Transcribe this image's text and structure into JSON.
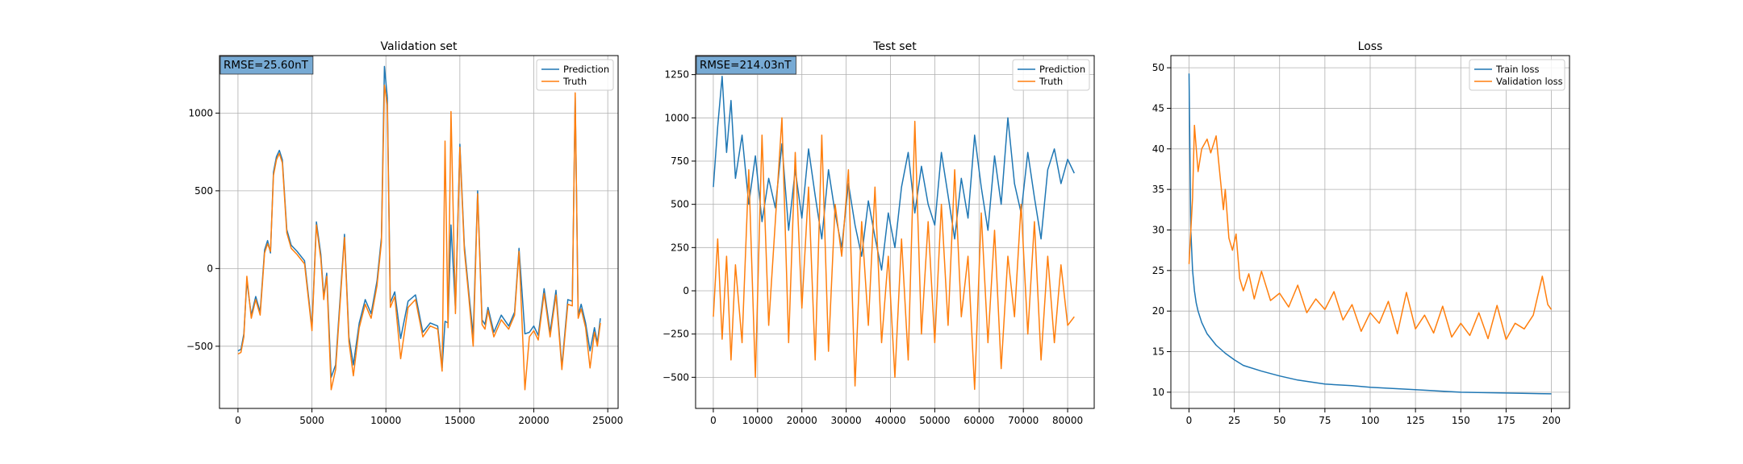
{
  "figure": {
    "colors": {
      "series1": "#1f77b4",
      "series2": "#ff7f0e",
      "grid": "#b0b0b0",
      "rmse_box": "#77aad4"
    }
  },
  "chart_data": [
    {
      "type": "line",
      "title": "Validation set",
      "annotation": "RMSE=25.60nT",
      "xlim": [
        -1250,
        25700
      ],
      "ylim": [
        -900,
        1370
      ],
      "xticks": [
        0,
        5000,
        10000,
        15000,
        20000,
        25000
      ],
      "yticks": [
        -500,
        0,
        500,
        1000
      ],
      "grid": true,
      "legend_position": "upper right",
      "series": [
        {
          "name": "Prediction",
          "x": [
            0,
            200,
            400,
            600,
            900,
            1200,
            1500,
            1800,
            2000,
            2200,
            2400,
            2600,
            2800,
            3000,
            3300,
            3600,
            4000,
            4500,
            5000,
            5300,
            5600,
            5800,
            6000,
            6300,
            6600,
            6900,
            7200,
            7500,
            7800,
            8200,
            8600,
            9000,
            9400,
            9700,
            9900,
            10100,
            10300,
            10600,
            11000,
            11500,
            12000,
            12500,
            13000,
            13500,
            13800,
            14000,
            14200,
            14400,
            14700,
            15000,
            15300,
            15600,
            15900,
            16200,
            16500,
            16700,
            16900,
            17300,
            17800,
            18300,
            18700,
            19000,
            19400,
            19700,
            20000,
            20300,
            20700,
            21100,
            21500,
            21900,
            22300,
            22600,
            22800,
            23000,
            23200,
            23500,
            23800,
            24100,
            24300,
            24500
          ],
          "values": [
            -530,
            -520,
            -420,
            -80,
            -300,
            -180,
            -280,
            120,
            180,
            100,
            620,
            720,
            760,
            700,
            250,
            150,
            110,
            50,
            -380,
            300,
            90,
            -180,
            -30,
            -700,
            -620,
            -200,
            220,
            -440,
            -620,
            -350,
            -200,
            -290,
            -80,
            200,
            1300,
            1100,
            -220,
            -150,
            -450,
            -210,
            -170,
            -410,
            -350,
            -370,
            -640,
            -340,
            -350,
            280,
            -260,
            800,
            150,
            -150,
            -430,
            500,
            -330,
            -360,
            -250,
            -410,
            -300,
            -370,
            -280,
            130,
            -420,
            -410,
            -370,
            -430,
            -130,
            -410,
            -140,
            -630,
            -200,
            -210,
            1100,
            -300,
            -230,
            -350,
            -530,
            -380,
            -480,
            -320
          ]
        },
        {
          "name": "Truth",
          "x": [
            0,
            200,
            400,
            600,
            900,
            1200,
            1500,
            1800,
            2000,
            2200,
            2400,
            2600,
            2800,
            3000,
            3300,
            3600,
            4000,
            4500,
            5000,
            5300,
            5600,
            5800,
            6000,
            6300,
            6600,
            6900,
            7200,
            7500,
            7800,
            8200,
            8600,
            9000,
            9400,
            9700,
            9900,
            10100,
            10300,
            10600,
            11000,
            11500,
            12000,
            12500,
            13000,
            13500,
            13800,
            14000,
            14200,
            14400,
            14700,
            15000,
            15300,
            15600,
            15900,
            16200,
            16500,
            16700,
            16900,
            17300,
            17800,
            18300,
            18700,
            19000,
            19400,
            19700,
            20000,
            20300,
            20700,
            21100,
            21500,
            21900,
            22300,
            22600,
            22800,
            23000,
            23200,
            23500,
            23800,
            24100,
            24300,
            24500
          ],
          "values": [
            -550,
            -540,
            -440,
            -50,
            -320,
            -200,
            -300,
            100,
            160,
            110,
            600,
            700,
            740,
            680,
            230,
            130,
            90,
            30,
            -400,
            280,
            60,
            -200,
            -50,
            -780,
            -650,
            -230,
            200,
            -470,
            -690,
            -380,
            -230,
            -320,
            -110,
            170,
            1180,
            1050,
            -250,
            -180,
            -580,
            -250,
            -200,
            -440,
            -370,
            -390,
            -660,
            820,
            -380,
            1010,
            -290,
            780,
            120,
            -180,
            -500,
            480,
            -360,
            -390,
            -270,
            -440,
            -330,
            -390,
            -300,
            110,
            -780,
            -440,
            -400,
            -460,
            -160,
            -440,
            -170,
            -650,
            -230,
            -240,
            1130,
            -320,
            -260,
            -380,
            -640,
            -410,
            -500,
            -350
          ]
        }
      ]
    },
    {
      "type": "line",
      "title": "Test set",
      "annotation": "RMSE=214.03nT",
      "xlim": [
        -4000,
        86000
      ],
      "ylim": [
        -680,
        1360
      ],
      "xticks": [
        0,
        10000,
        20000,
        30000,
        40000,
        50000,
        60000,
        70000,
        80000
      ],
      "yticks": [
        -500,
        -250,
        0,
        250,
        500,
        750,
        1000,
        1250
      ],
      "grid": true,
      "legend_position": "upper right",
      "series": [
        {
          "name": "Prediction",
          "x": [
            0,
            1000,
            2000,
            3000,
            4000,
            5000,
            6500,
            8000,
            9500,
            11000,
            12500,
            14000,
            15500,
            17000,
            18500,
            20000,
            21500,
            23000,
            24500,
            26000,
            27500,
            29000,
            30500,
            32000,
            33500,
            35000,
            36500,
            38000,
            39500,
            41000,
            42500,
            44000,
            45500,
            47000,
            48500,
            50000,
            51500,
            53000,
            54500,
            56000,
            57500,
            59000,
            60500,
            62000,
            63500,
            65000,
            66500,
            68000,
            69500,
            71000,
            72500,
            74000,
            75500,
            77000,
            78500,
            80000,
            81500
          ],
          "values": [
            600,
            950,
            1240,
            800,
            1100,
            650,
            900,
            500,
            780,
            400,
            650,
            480,
            850,
            350,
            700,
            420,
            820,
            550,
            300,
            700,
            450,
            250,
            620,
            380,
            200,
            520,
            310,
            120,
            450,
            250,
            600,
            800,
            450,
            720,
            500,
            380,
            800,
            550,
            300,
            650,
            420,
            900,
            600,
            350,
            780,
            500,
            1000,
            620,
            450,
            800,
            540,
            300,
            700,
            820,
            620,
            760,
            680
          ]
        },
        {
          "name": "Truth",
          "x": [
            0,
            1000,
            2000,
            3000,
            4000,
            5000,
            6500,
            8000,
            9500,
            11000,
            12500,
            14000,
            15500,
            17000,
            18500,
            20000,
            21500,
            23000,
            24500,
            26000,
            27500,
            29000,
            30500,
            32000,
            33500,
            35000,
            36500,
            38000,
            39500,
            41000,
            42500,
            44000,
            45500,
            47000,
            48500,
            50000,
            51500,
            53000,
            54500,
            56000,
            57500,
            59000,
            60500,
            62000,
            63500,
            65000,
            66500,
            68000,
            69500,
            71000,
            72500,
            74000,
            75500,
            77000,
            78500,
            80000,
            81500
          ],
          "values": [
            -150,
            300,
            -280,
            200,
            -400,
            150,
            -300,
            700,
            -500,
            900,
            -200,
            400,
            1000,
            -300,
            800,
            -100,
            600,
            -400,
            900,
            -350,
            500,
            200,
            700,
            -550,
            400,
            -200,
            600,
            -300,
            200,
            -500,
            300,
            -400,
            980,
            -250,
            400,
            -300,
            500,
            -200,
            700,
            -150,
            200,
            -570,
            450,
            -300,
            350,
            -450,
            200,
            -150,
            500,
            -250,
            400,
            -400,
            200,
            -300,
            150,
            -200,
            -150
          ]
        }
      ]
    },
    {
      "type": "line",
      "title": "Loss",
      "xlim": [
        -10,
        210
      ],
      "ylim": [
        8,
        51.5
      ],
      "xticks": [
        0,
        25,
        50,
        75,
        100,
        125,
        150,
        175,
        200
      ],
      "yticks": [
        10,
        15,
        20,
        25,
        30,
        35,
        40,
        45,
        50
      ],
      "grid": true,
      "legend_position": "upper right",
      "series": [
        {
          "name": "Train loss",
          "x": [
            0,
            1,
            2,
            3,
            4,
            5,
            7,
            10,
            15,
            20,
            25,
            30,
            40,
            50,
            60,
            75,
            90,
            100,
            125,
            150,
            175,
            200
          ],
          "values": [
            49.3,
            30,
            25,
            22.5,
            21,
            20,
            18.6,
            17.2,
            15.8,
            14.8,
            14,
            13.3,
            12.6,
            12.0,
            11.5,
            11.0,
            10.8,
            10.6,
            10.3,
            10.0,
            9.9,
            9.8
          ]
        },
        {
          "name": "Validation loss",
          "x": [
            0,
            2,
            3,
            5,
            7,
            10,
            12,
            15,
            17,
            19,
            20,
            22,
            24,
            26,
            28,
            30,
            33,
            36,
            40,
            45,
            50,
            55,
            60,
            65,
            70,
            75,
            80,
            85,
            90,
            95,
            100,
            105,
            110,
            115,
            120,
            125,
            130,
            135,
            140,
            145,
            150,
            155,
            160,
            165,
            170,
            175,
            180,
            185,
            190,
            195,
            198,
            200
          ],
          "values": [
            25.8,
            34,
            42.9,
            37.2,
            40,
            41.2,
            39.5,
            41.6,
            37,
            32.5,
            35,
            29,
            27.5,
            29.5,
            24,
            22.5,
            24.6,
            21.5,
            24.9,
            21.3,
            22.2,
            20.5,
            23.2,
            19.8,
            21.5,
            20.2,
            22.4,
            18.9,
            20.8,
            17.5,
            19.8,
            18.5,
            21.2,
            17.2,
            22.3,
            17.8,
            19.5,
            17.3,
            20.6,
            16.8,
            18.5,
            17.0,
            19.8,
            16.6,
            20.7,
            16.5,
            18.5,
            17.8,
            19.5,
            24.3,
            20.8,
            20.2
          ]
        }
      ]
    }
  ]
}
